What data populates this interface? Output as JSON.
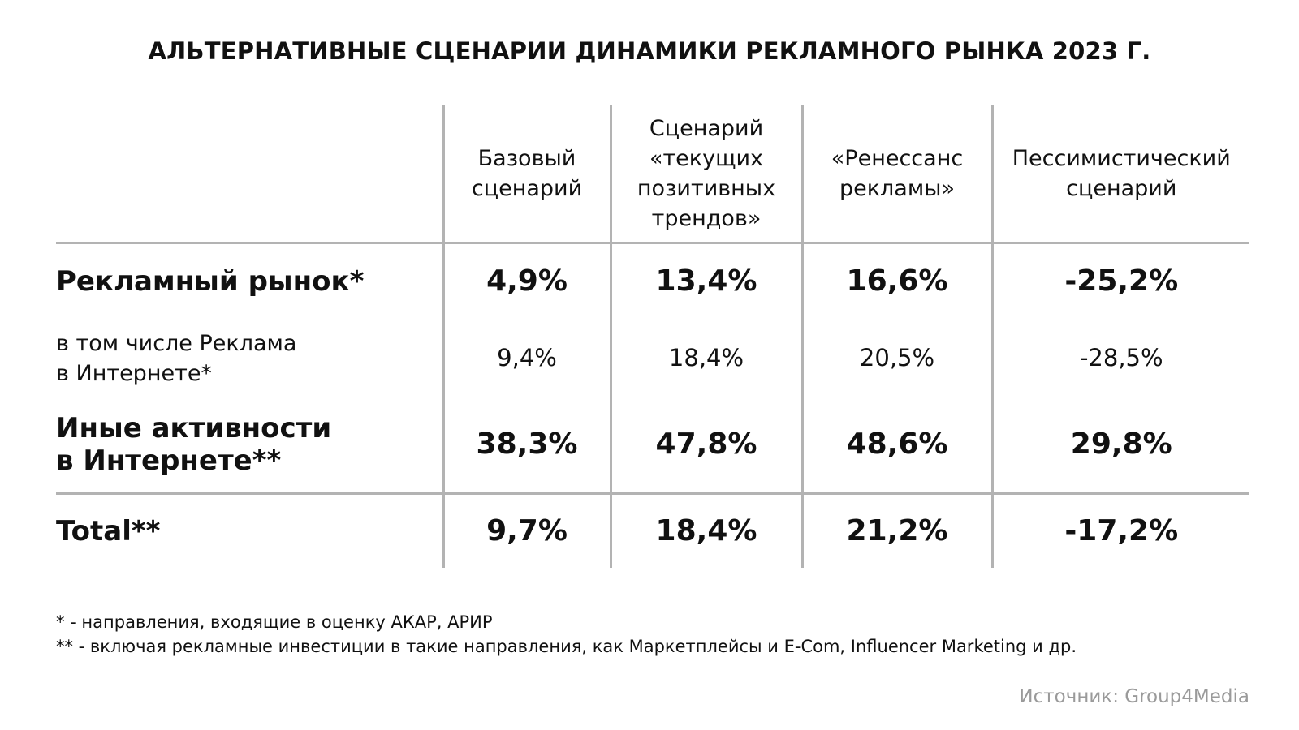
{
  "header": {
    "title": "АЛЬТЕРНАТИВНЫЕ СЦЕНАРИИ ДИНАМИКИ РЕКЛАМНОГО РЫНКА 2023 Г."
  },
  "table": {
    "columns": [
      "Базовый\nсценарий",
      "Сценарий\n«текущих\nпозитивных\nтрендов»",
      "«Ренессанс\nрекламы»",
      "Пессимистический\nсценарий"
    ],
    "rows": [
      {
        "label": "Рекламный рынок*",
        "values": [
          "4,9%",
          "13,4%",
          "16,6%",
          "-25,2%"
        ]
      },
      {
        "label": "в том числе Реклама\nв Интернете*",
        "values": [
          "9,4%",
          "18,4%",
          "20,5%",
          "-28,5%"
        ]
      },
      {
        "label": "Иные активности\nв Интернете**",
        "values": [
          "38,3%",
          "47,8%",
          "48,6%",
          "29,8%"
        ]
      },
      {
        "label": "Total**",
        "values": [
          "9,7%",
          "18,4%",
          "21,2%",
          "-17,2%"
        ]
      }
    ]
  },
  "footnotes": [
    "* - направления, входящие в оценку АКАР, АРИР",
    "** - включая рекламные инвестиции в такие направления, как Маркетплейсы и E-Com, Influencer Marketing и др."
  ],
  "source": "Источник: Group4Media"
}
